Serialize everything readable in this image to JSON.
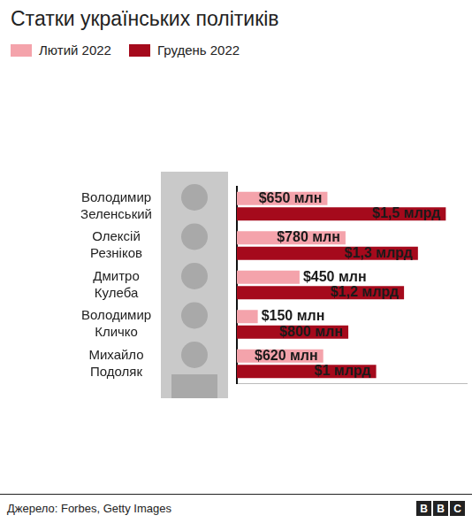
{
  "chart_data": {
    "type": "bar",
    "orientation": "horizontal",
    "title": "Статки українських політиків",
    "categories": [
      "Володимир Зеленський",
      "Олексій Резніков",
      "Дмитро Кулеба",
      "Володимир Кличко",
      "Михайло Подоляк"
    ],
    "series": [
      {
        "name": "Лютий 2022",
        "color": "#f4a3ab",
        "values": [
          650,
          780,
          450,
          150,
          620
        ],
        "value_labels": [
          "$650 млн",
          "$780 млн",
          "$450 млн",
          "$150 млн",
          "$620 млн"
        ]
      },
      {
        "name": "Грудень 2022",
        "color": "#a50a1c",
        "values": [
          1500,
          1300,
          1200,
          800,
          1000
        ],
        "value_labels": [
          "$1,5 млрд",
          "$1,3 млрд",
          "$1,2 млрд",
          "$800 млн",
          "$1 млрд"
        ]
      }
    ],
    "xlim": [
      0,
      1650
    ],
    "xticks": [],
    "tick_labels": "y",
    "grid": false,
    "data_labels": true,
    "legend": "top-left",
    "source": "Джерело: Forbes, Getty Images",
    "logo": "BBC"
  }
}
